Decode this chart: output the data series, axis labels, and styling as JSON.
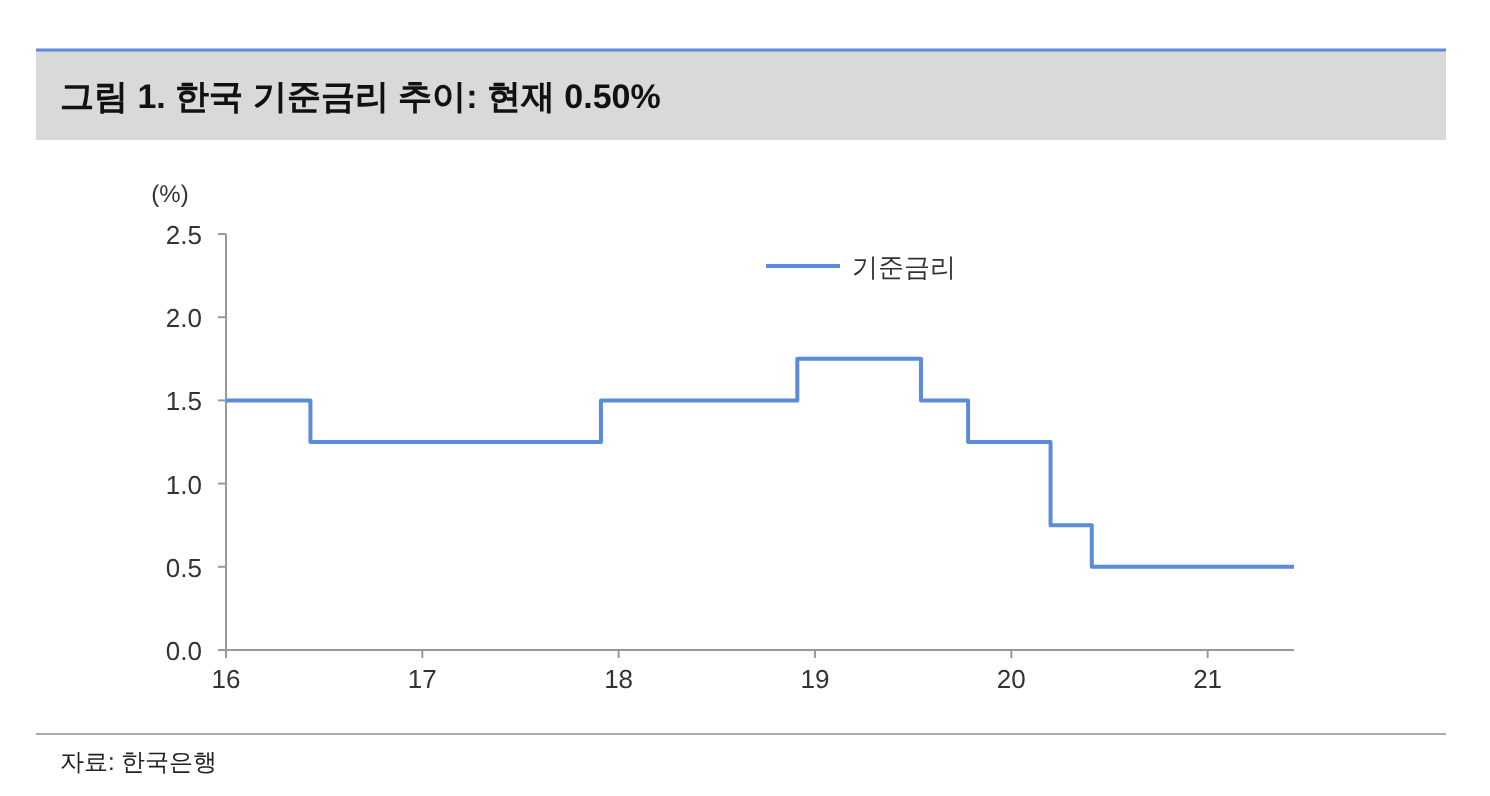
{
  "chart_data": {
    "type": "step",
    "title": "그림 1. 한국 기준금리 추이: 현재 0.50%",
    "ylabel": "(%)",
    "series": [
      {
        "name": "기준금리",
        "color": "#5b8bd9",
        "x": [
          16,
          16.43,
          17.91,
          18.91,
          19.54,
          19.78,
          20.2,
          20.41,
          21.44
        ],
        "values": [
          1.5,
          1.25,
          1.5,
          1.75,
          1.5,
          1.25,
          0.75,
          0.5,
          0.5
        ]
      }
    ],
    "xlim": [
      16,
      21.44
    ],
    "xticks": [
      16,
      17,
      18,
      19,
      20,
      21
    ],
    "ylim": [
      0,
      2.5
    ],
    "yticks": [
      {
        "value": 0,
        "label": "0.0"
      },
      0.5,
      {
        "value": 1,
        "label": "1.0"
      },
      1.5,
      {
        "value": 2,
        "label": "2.0"
      },
      2.5
    ],
    "legend": "top right",
    "grid": false,
    "annotations": [
      "자료: 한국은행"
    ]
  }
}
